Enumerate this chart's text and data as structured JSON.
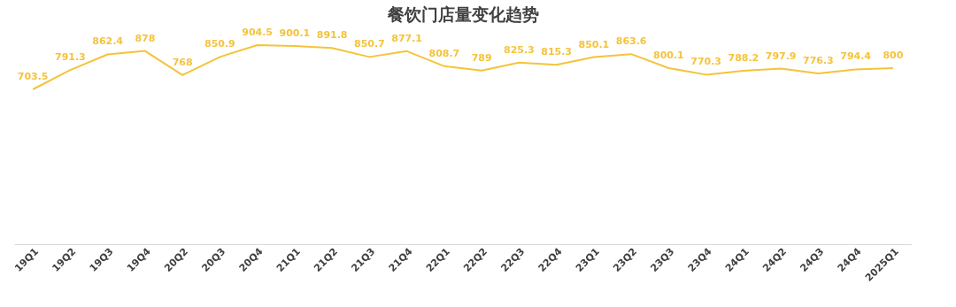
{
  "chart_data": {
    "type": "line",
    "title": "餐饮门店量变化趋势",
    "categories": [
      "19Q1",
      "19Q2",
      "19Q3",
      "19Q4",
      "20Q2",
      "20Q3",
      "20Q4",
      "21Q1",
      "21Q2",
      "21Q3",
      "21Q4",
      "22Q1",
      "22Q2",
      "22Q3",
      "22Q4",
      "23Q1",
      "23Q2",
      "23Q3",
      "23Q4",
      "24Q1",
      "24Q2",
      "24Q3",
      "24Q4",
      "2025Q1"
    ],
    "series": [
      {
        "color": "#f5c33b",
        "values": [
          703.5,
          791.3,
          862.4,
          878,
          768,
          850.9,
          904.5,
          900.1,
          891.8,
          850.7,
          877.1,
          808.7,
          789,
          825.3,
          815.3,
          850.1,
          863.6,
          800.1,
          770.3,
          788.2,
          797.9,
          776.3,
          794.4,
          800
        ]
      }
    ],
    "tick_labels": "x",
    "data_labels": true,
    "grid": false,
    "marker": "none",
    "line_style": "solid"
  }
}
